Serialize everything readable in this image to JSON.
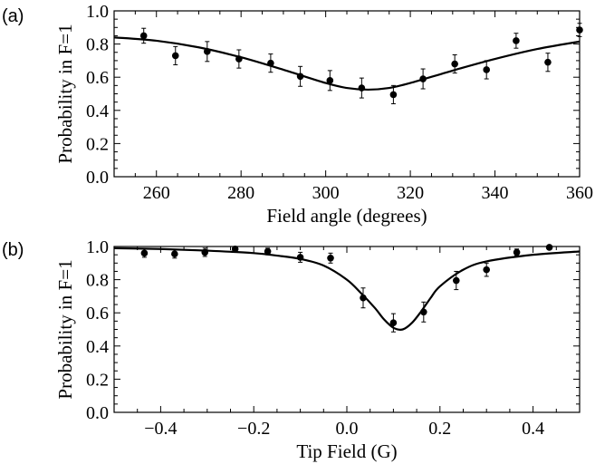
{
  "chart_data": [
    {
      "type": "scatter",
      "panel_label": "(a)",
      "xlabel": "Field angle (degrees)",
      "ylabel": "Probability in F=1",
      "xlim": [
        250,
        360
      ],
      "ylim": [
        0,
        1
      ],
      "x_ticks": [
        260,
        280,
        300,
        320,
        340,
        360
      ],
      "y_ticks": [
        0.0,
        0.2,
        0.4,
        0.6,
        0.8,
        1.0
      ],
      "x_tick_labels": [
        "260",
        "280",
        "300",
        "320",
        "340",
        "360"
      ],
      "y_tick_labels": [
        "0.0",
        "0.2",
        "0.4",
        "0.6",
        "0.8",
        "1.0"
      ],
      "points": [
        {
          "x": 257,
          "y": 0.85,
          "err": 0.045
        },
        {
          "x": 264.5,
          "y": 0.73,
          "err": 0.055
        },
        {
          "x": 272,
          "y": 0.755,
          "err": 0.06
        },
        {
          "x": 279.5,
          "y": 0.71,
          "err": 0.055
        },
        {
          "x": 287,
          "y": 0.685,
          "err": 0.055
        },
        {
          "x": 294,
          "y": 0.605,
          "err": 0.06
        },
        {
          "x": 301,
          "y": 0.58,
          "err": 0.06
        },
        {
          "x": 308.5,
          "y": 0.535,
          "err": 0.06
        },
        {
          "x": 316,
          "y": 0.495,
          "err": 0.055
        },
        {
          "x": 323,
          "y": 0.59,
          "err": 0.06
        },
        {
          "x": 330.5,
          "y": 0.68,
          "err": 0.055
        },
        {
          "x": 338,
          "y": 0.645,
          "err": 0.055
        },
        {
          "x": 345,
          "y": 0.82,
          "err": 0.045
        },
        {
          "x": 352.5,
          "y": 0.69,
          "err": 0.055
        },
        {
          "x": 360,
          "y": 0.885,
          "err": 0.04
        }
      ],
      "fit_curve": {
        "x": [
          250,
          260,
          270,
          280,
          290,
          300,
          305,
          310,
          315,
          320,
          330,
          340,
          350,
          360
        ],
        "y": [
          0.84,
          0.82,
          0.78,
          0.72,
          0.645,
          0.565,
          0.535,
          0.525,
          0.535,
          0.565,
          0.64,
          0.71,
          0.77,
          0.815
        ]
      }
    },
    {
      "type": "scatter",
      "panel_label": "(b)",
      "xlabel": "Tip Field (G)",
      "ylabel": "Probability in F=1",
      "xlim": [
        -0.5,
        0.5
      ],
      "ylim": [
        0,
        1
      ],
      "x_ticks": [
        -0.4,
        -0.2,
        0.0,
        0.2,
        0.4
      ],
      "y_ticks": [
        0.0,
        0.2,
        0.4,
        0.6,
        0.8,
        1.0
      ],
      "x_tick_labels": [
        "−0.4",
        "−0.2",
        "0.0",
        "0.2",
        "0.4"
      ],
      "y_tick_labels": [
        "0.0",
        "0.2",
        "0.4",
        "0.6",
        "0.8",
        "1.0"
      ],
      "points": [
        {
          "x": -0.435,
          "y": 0.96,
          "err": 0.025
        },
        {
          "x": -0.37,
          "y": 0.955,
          "err": 0.025
        },
        {
          "x": -0.305,
          "y": 0.965,
          "err": 0.025
        },
        {
          "x": -0.24,
          "y": 0.985,
          "err": 0.015
        },
        {
          "x": -0.17,
          "y": 0.97,
          "err": 0.02
        },
        {
          "x": -0.1,
          "y": 0.935,
          "err": 0.03
        },
        {
          "x": -0.035,
          "y": 0.93,
          "err": 0.03
        },
        {
          "x": 0.035,
          "y": 0.69,
          "err": 0.06
        },
        {
          "x": 0.1,
          "y": 0.54,
          "err": 0.055
        },
        {
          "x": 0.165,
          "y": 0.605,
          "err": 0.06
        },
        {
          "x": 0.235,
          "y": 0.795,
          "err": 0.055
        },
        {
          "x": 0.3,
          "y": 0.86,
          "err": 0.04
        },
        {
          "x": 0.365,
          "y": 0.965,
          "err": 0.02
        },
        {
          "x": 0.435,
          "y": 0.995,
          "err": 0.012
        }
      ],
      "fit_curve": {
        "x": [
          -0.5,
          -0.4,
          -0.3,
          -0.2,
          -0.15,
          -0.1,
          -0.05,
          0.0,
          0.03,
          0.06,
          0.08,
          0.1,
          0.12,
          0.14,
          0.16,
          0.18,
          0.2,
          0.25,
          0.3,
          0.4,
          0.5
        ],
        "y": [
          0.99,
          0.985,
          0.975,
          0.96,
          0.945,
          0.925,
          0.885,
          0.8,
          0.72,
          0.63,
          0.56,
          0.51,
          0.5,
          0.54,
          0.61,
          0.69,
          0.76,
          0.86,
          0.91,
          0.95,
          0.97
        ]
      }
    }
  ]
}
